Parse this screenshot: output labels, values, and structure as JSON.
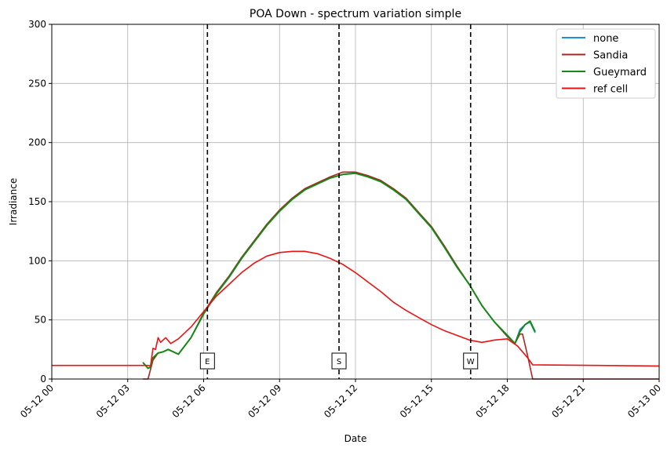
{
  "chart_data": {
    "type": "line",
    "title": "POA Down - spectrum variation simple",
    "xlabel": "Date",
    "ylabel": "Irradiance",
    "xlim_hours": [
      0,
      24
    ],
    "ylim": [
      0,
      300
    ],
    "grid": true,
    "legend_position": "top-right",
    "x_ticks": [
      {
        "hour": 0,
        "label": "05-12 00"
      },
      {
        "hour": 3,
        "label": "05-12 03"
      },
      {
        "hour": 6,
        "label": "05-12 06"
      },
      {
        "hour": 9,
        "label": "05-12 09"
      },
      {
        "hour": 12,
        "label": "05-12 12"
      },
      {
        "hour": 15,
        "label": "05-12 15"
      },
      {
        "hour": 18,
        "label": "05-12 18"
      },
      {
        "hour": 21,
        "label": "05-12 21"
      },
      {
        "hour": 24,
        "label": "05-13 00"
      }
    ],
    "y_ticks": [
      0,
      50,
      100,
      150,
      200,
      250,
      300
    ],
    "markers": [
      {
        "label": "E",
        "hour": 6.15
      },
      {
        "label": "S",
        "hour": 11.35
      },
      {
        "label": "W",
        "hour": 16.55
      }
    ],
    "series": [
      {
        "name": "none",
        "color": "#1f8fd9",
        "points": [
          [
            3.6,
            14
          ],
          [
            3.8,
            9
          ],
          [
            3.9,
            10
          ],
          [
            4.0,
            18
          ],
          [
            4.2,
            22
          ],
          [
            4.4,
            23
          ],
          [
            4.6,
            25
          ],
          [
            5.0,
            21
          ],
          [
            5.5,
            35
          ],
          [
            6.0,
            55
          ],
          [
            6.5,
            72
          ],
          [
            7.0,
            86
          ],
          [
            7.5,
            102
          ],
          [
            8.0,
            116
          ],
          [
            8.5,
            130
          ],
          [
            9.0,
            142
          ],
          [
            9.5,
            152
          ],
          [
            10.0,
            160
          ],
          [
            10.5,
            165
          ],
          [
            11.0,
            170
          ],
          [
            11.5,
            173
          ],
          [
            12.0,
            174
          ],
          [
            12.5,
            171
          ],
          [
            13.0,
            167
          ],
          [
            13.5,
            160
          ],
          [
            14.0,
            152
          ],
          [
            14.5,
            140
          ],
          [
            15.0,
            128
          ],
          [
            15.5,
            112
          ],
          [
            16.0,
            95
          ],
          [
            16.5,
            80
          ],
          [
            17.0,
            62
          ],
          [
            17.5,
            48
          ],
          [
            18.0,
            37
          ],
          [
            18.3,
            30
          ],
          [
            18.5,
            42
          ],
          [
            18.7,
            46
          ],
          [
            18.9,
            48
          ],
          [
            19.1,
            39
          ]
        ]
      },
      {
        "name": "Sandia",
        "color": "#b22222",
        "points": [
          [
            3.6,
            0
          ],
          [
            3.8,
            0
          ],
          [
            4.0,
            16
          ],
          [
            4.2,
            22
          ],
          [
            4.4,
            23
          ],
          [
            4.6,
            25
          ],
          [
            5.0,
            21
          ],
          [
            5.5,
            35
          ],
          [
            6.0,
            56
          ],
          [
            6.5,
            73
          ],
          [
            7.0,
            87
          ],
          [
            7.5,
            103
          ],
          [
            8.0,
            117
          ],
          [
            8.5,
            131
          ],
          [
            9.0,
            143
          ],
          [
            9.5,
            153
          ],
          [
            10.0,
            161
          ],
          [
            10.5,
            166
          ],
          [
            11.0,
            171
          ],
          [
            11.5,
            175
          ],
          [
            12.0,
            175
          ],
          [
            12.5,
            172
          ],
          [
            13.0,
            168
          ],
          [
            13.5,
            161
          ],
          [
            14.0,
            153
          ],
          [
            14.5,
            141
          ],
          [
            15.0,
            129
          ],
          [
            15.5,
            113
          ],
          [
            16.0,
            96
          ],
          [
            16.5,
            80
          ],
          [
            17.0,
            62
          ],
          [
            17.5,
            48
          ],
          [
            18.0,
            36
          ],
          [
            18.3,
            30
          ],
          [
            18.5,
            38
          ],
          [
            18.6,
            38
          ],
          [
            18.8,
            20
          ],
          [
            19.0,
            0
          ],
          [
            24.0,
            0
          ]
        ]
      },
      {
        "name": "Gueymard",
        "color": "#138a13",
        "points": [
          [
            3.6,
            14
          ],
          [
            3.8,
            9
          ],
          [
            3.9,
            10
          ],
          [
            4.0,
            18
          ],
          [
            4.2,
            22
          ],
          [
            4.4,
            23
          ],
          [
            4.6,
            25
          ],
          [
            5.0,
            21
          ],
          [
            5.5,
            35
          ],
          [
            6.0,
            55
          ],
          [
            6.5,
            72
          ],
          [
            7.0,
            86
          ],
          [
            7.5,
            102
          ],
          [
            8.0,
            116
          ],
          [
            8.5,
            130
          ],
          [
            9.0,
            142
          ],
          [
            9.5,
            152
          ],
          [
            10.0,
            160
          ],
          [
            10.5,
            165
          ],
          [
            11.0,
            170
          ],
          [
            11.5,
            173
          ],
          [
            12.0,
            174
          ],
          [
            12.5,
            171
          ],
          [
            13.0,
            167
          ],
          [
            13.5,
            160
          ],
          [
            14.0,
            152
          ],
          [
            14.5,
            140
          ],
          [
            15.0,
            128
          ],
          [
            15.5,
            112
          ],
          [
            16.0,
            95
          ],
          [
            16.5,
            80
          ],
          [
            17.0,
            62
          ],
          [
            17.5,
            48
          ],
          [
            18.0,
            37
          ],
          [
            18.3,
            30
          ],
          [
            18.5,
            40
          ],
          [
            18.7,
            46
          ],
          [
            18.9,
            49
          ],
          [
            19.1,
            40
          ]
        ]
      },
      {
        "name": "ref cell",
        "color": "#ee1111",
        "points": [
          [
            0,
            11.5
          ],
          [
            3.8,
            11.5
          ],
          [
            3.9,
            11
          ],
          [
            4.0,
            26
          ],
          [
            4.1,
            25
          ],
          [
            4.2,
            35
          ],
          [
            4.3,
            31
          ],
          [
            4.5,
            35
          ],
          [
            4.7,
            30
          ],
          [
            5.0,
            34
          ],
          [
            5.5,
            44
          ],
          [
            6.0,
            57
          ],
          [
            6.5,
            70
          ],
          [
            7.0,
            80
          ],
          [
            7.5,
            90
          ],
          [
            8.0,
            98
          ],
          [
            8.5,
            104
          ],
          [
            9.0,
            107
          ],
          [
            9.5,
            108
          ],
          [
            10.0,
            108
          ],
          [
            10.5,
            106
          ],
          [
            11.0,
            102
          ],
          [
            11.5,
            97
          ],
          [
            12.0,
            90
          ],
          [
            12.5,
            82
          ],
          [
            13.0,
            74
          ],
          [
            13.5,
            65
          ],
          [
            14.0,
            58
          ],
          [
            14.5,
            52
          ],
          [
            15.0,
            46
          ],
          [
            15.5,
            41
          ],
          [
            16.0,
            37
          ],
          [
            16.5,
            33
          ],
          [
            17.0,
            31
          ],
          [
            17.5,
            33
          ],
          [
            18.0,
            34
          ],
          [
            18.2,
            31
          ],
          [
            18.4,
            28
          ],
          [
            18.6,
            23
          ],
          [
            18.8,
            18
          ],
          [
            19.0,
            12
          ],
          [
            24.0,
            11
          ]
        ]
      }
    ]
  }
}
